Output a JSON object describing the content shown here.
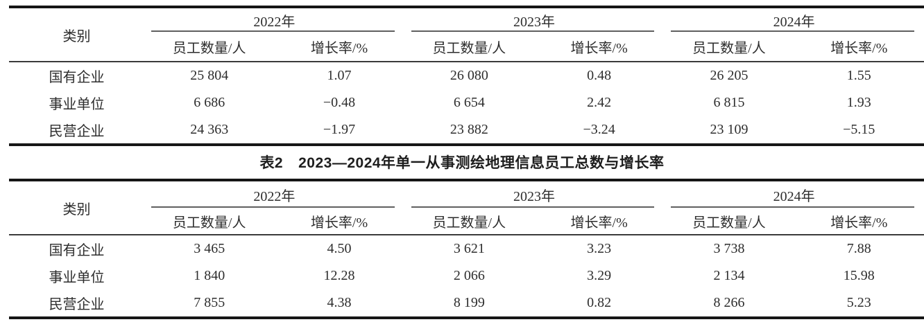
{
  "document": {
    "background": "#ffffff",
    "text_color": "#2d2d2d",
    "thick_border_color": "#161616",
    "thin_line_color": "#3a3a3a",
    "year_underline_color": "#5f5f5f"
  },
  "caption": {
    "prefix": "表2",
    "title": "2023—2024年单一从事测绘地理信息员工总数与增长率"
  },
  "table1": {
    "category_header": "类别",
    "year_headers": [
      "2022年",
      "2023年",
      "2024年"
    ],
    "sub_headers": [
      "员工数量/人",
      "增长率/%",
      "员工数量/人",
      "增长率/%",
      "员工数量/人",
      "增长率/%"
    ],
    "rows": [
      {
        "category": "国有企业",
        "values": [
          "25 804",
          "1.07",
          "26 080",
          "0.48",
          "26 205",
          "1.55"
        ]
      },
      {
        "category": "事业单位",
        "values": [
          "6 686",
          "−0.48",
          "6 654",
          "2.42",
          "6 815",
          "1.93"
        ]
      },
      {
        "category": "民营企业",
        "values": [
          "24 363",
          "−1.97",
          "23 882",
          "−3.24",
          "23 109",
          "−5.15"
        ]
      }
    ]
  },
  "table2": {
    "category_header": "类别",
    "year_headers": [
      "2022年",
      "2023年",
      "2024年"
    ],
    "sub_headers": [
      "员工数量/人",
      "增长率/%",
      "员工数量/人",
      "增长率/%",
      "员工数量/人",
      "增长率/%"
    ],
    "rows": [
      {
        "category": "国有企业",
        "values": [
          "3 465",
          "4.50",
          "3 621",
          "3.23",
          "3 738",
          "7.88"
        ]
      },
      {
        "category": "事业单位",
        "values": [
          "1 840",
          "12.28",
          "2 066",
          "3.29",
          "2 134",
          "15.98"
        ]
      },
      {
        "category": "民营企业",
        "values": [
          "7 855",
          "4.38",
          "8 199",
          "0.82",
          "8 266",
          "5.23"
        ]
      }
    ]
  }
}
